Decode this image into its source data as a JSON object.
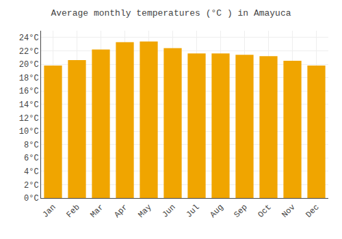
{
  "chart_data": {
    "type": "bar",
    "title": "Average monthly temperatures (°C ) in Amayuca",
    "categories": [
      "Jan",
      "Feb",
      "Mar",
      "Apr",
      "May",
      "Jun",
      "Jul",
      "Aug",
      "Sep",
      "Oct",
      "Nov",
      "Dec"
    ],
    "values": [
      19.8,
      20.6,
      22.2,
      23.3,
      23.4,
      22.4,
      21.6,
      21.6,
      21.4,
      21.2,
      20.5,
      19.8
    ],
    "color": "#F0A500",
    "ylim": [
      0,
      25
    ],
    "yticks": [
      {
        "value": 0,
        "label": "0°C"
      },
      {
        "value": 2,
        "label": "2°C"
      },
      {
        "value": 4,
        "label": "4°C"
      },
      {
        "value": 6,
        "label": "6°C"
      },
      {
        "value": 8,
        "label": "8°C"
      },
      {
        "value": 10,
        "label": "10°C"
      },
      {
        "value": 12,
        "label": "12°C"
      },
      {
        "value": 14,
        "label": "14°C"
      },
      {
        "value": 16,
        "label": "16°C"
      },
      {
        "value": 18,
        "label": "18°C"
      },
      {
        "value": 20,
        "label": "20°C"
      },
      {
        "value": 22,
        "label": "22°C"
      },
      {
        "value": 24,
        "label": "24°C"
      }
    ],
    "grid": true
  }
}
